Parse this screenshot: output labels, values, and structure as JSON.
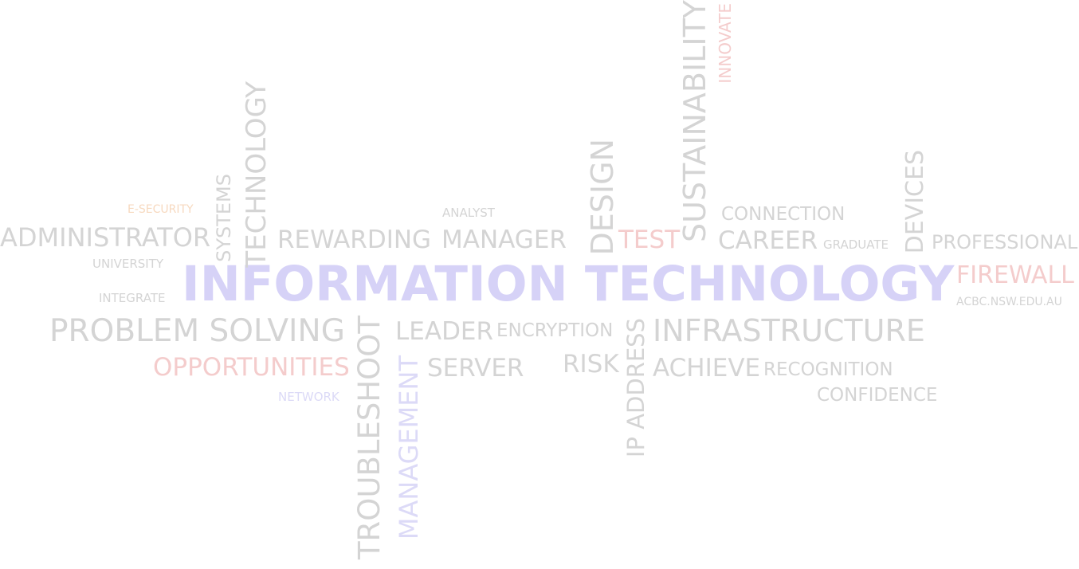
{
  "words": {
    "information_technology": "INFORMATION TECHNOLOGY",
    "administrator": "ADMINISTRATOR",
    "systems": "SYSTEMS",
    "technology": "TECHNOLOGY",
    "e_security": "E-SECURITY",
    "analyst": "ANALYST",
    "rewarding": "REWARDING",
    "manager": "MANAGER",
    "design": "DESIGN",
    "test": "TEST",
    "sustainability": "SUSTAINABILITY",
    "innovate": "INNOVATE",
    "connection": "CONNECTION",
    "career": "CAREER",
    "graduate": "GRADUATE",
    "devices": "DEVICES",
    "professional": "PROFESSIONAL",
    "university": "UNIVERSITY",
    "integrate": "INTEGRATE",
    "firewall": "FIREWALL",
    "domain": "ACBC.NSW.EDU.AU",
    "problem_solving": "PROBLEM SOLVING",
    "troubleshoot": "TROUBLESHOOT",
    "leader": "LEADER",
    "encryption": "ENCRYPTION",
    "ip_address": "IP ADDRESS",
    "infrastructure": "INFRASTRUCTURE",
    "opportunities": "OPPORTUNITIES",
    "management": "MANAGEMENT",
    "server": "SERVER",
    "risk": "RISK",
    "achieve": "ACHIEVE",
    "recognition": "RECOGNITION",
    "confidence": "CONFIDENCE",
    "network": "NETWORK"
  },
  "colors": {
    "gray": "#d4d4d4",
    "red": "#f4cccc",
    "orange": "#f7d9bf",
    "blue": "#d6d2f7"
  }
}
